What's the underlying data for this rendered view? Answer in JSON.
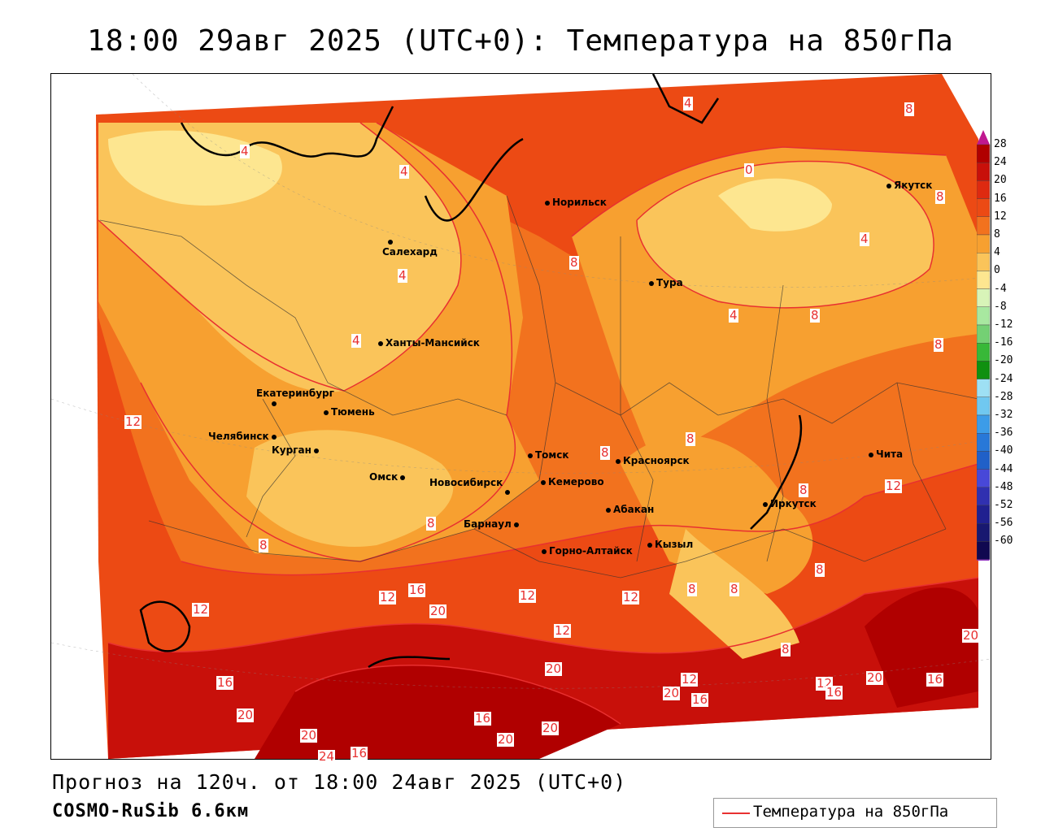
{
  "title": "18:00 29авг 2025 (UTC+0): Температура на 850гПа",
  "footer": {
    "forecast": "Прогноз на 120ч. от 18:00 24авг 2025 (UTC+0)",
    "model": "COSMO-RuSib 6.6км"
  },
  "legend": {
    "label": "Температура на 850гПа",
    "line_color": "#e83030"
  },
  "colorbar": {
    "labels": [
      "28",
      "24",
      "20",
      "16",
      "12",
      "8",
      "4",
      "0",
      "-4",
      "-8",
      "-12",
      "-16",
      "-20",
      "-24",
      "-28",
      "-32",
      "-36",
      "-40",
      "-44",
      "-48",
      "-52",
      "-56",
      "-60"
    ],
    "colors": [
      "#b00000",
      "#c8100a",
      "#de2a10",
      "#ec4a14",
      "#f2721e",
      "#f7a030",
      "#fac45a",
      "#fde690",
      "#d8f4b8",
      "#a8e8a0",
      "#74d074",
      "#38b838",
      "#109010",
      "#9ee0f4",
      "#70c8f0",
      "#3c9ce8",
      "#2878d8",
      "#2060c8",
      "#4848d8",
      "#3030b0",
      "#202090",
      "#181870",
      "#100850"
    ]
  },
  "cities": [
    {
      "name": "Норильск"
    },
    {
      "name": "Якутск"
    },
    {
      "name": "Салехард"
    },
    {
      "name": "Тура"
    },
    {
      "name": "Ханты-Мансийск"
    },
    {
      "name": "Екатеринбург"
    },
    {
      "name": "Тюмень"
    },
    {
      "name": "Челябинск"
    },
    {
      "name": "Курган"
    },
    {
      "name": "Омск"
    },
    {
      "name": "Новосибирск"
    },
    {
      "name": "Томск"
    },
    {
      "name": "Кемерово"
    },
    {
      "name": "Красноярск"
    },
    {
      "name": "Барнаул"
    },
    {
      "name": "Абакан"
    },
    {
      "name": "Иркутск"
    },
    {
      "name": "Чита"
    },
    {
      "name": "Горно-Алтайск"
    },
    {
      "name": "Кызыл"
    }
  ],
  "isolines": [
    "4",
    "8",
    "12",
    "16",
    "20",
    "24",
    "0"
  ]
}
